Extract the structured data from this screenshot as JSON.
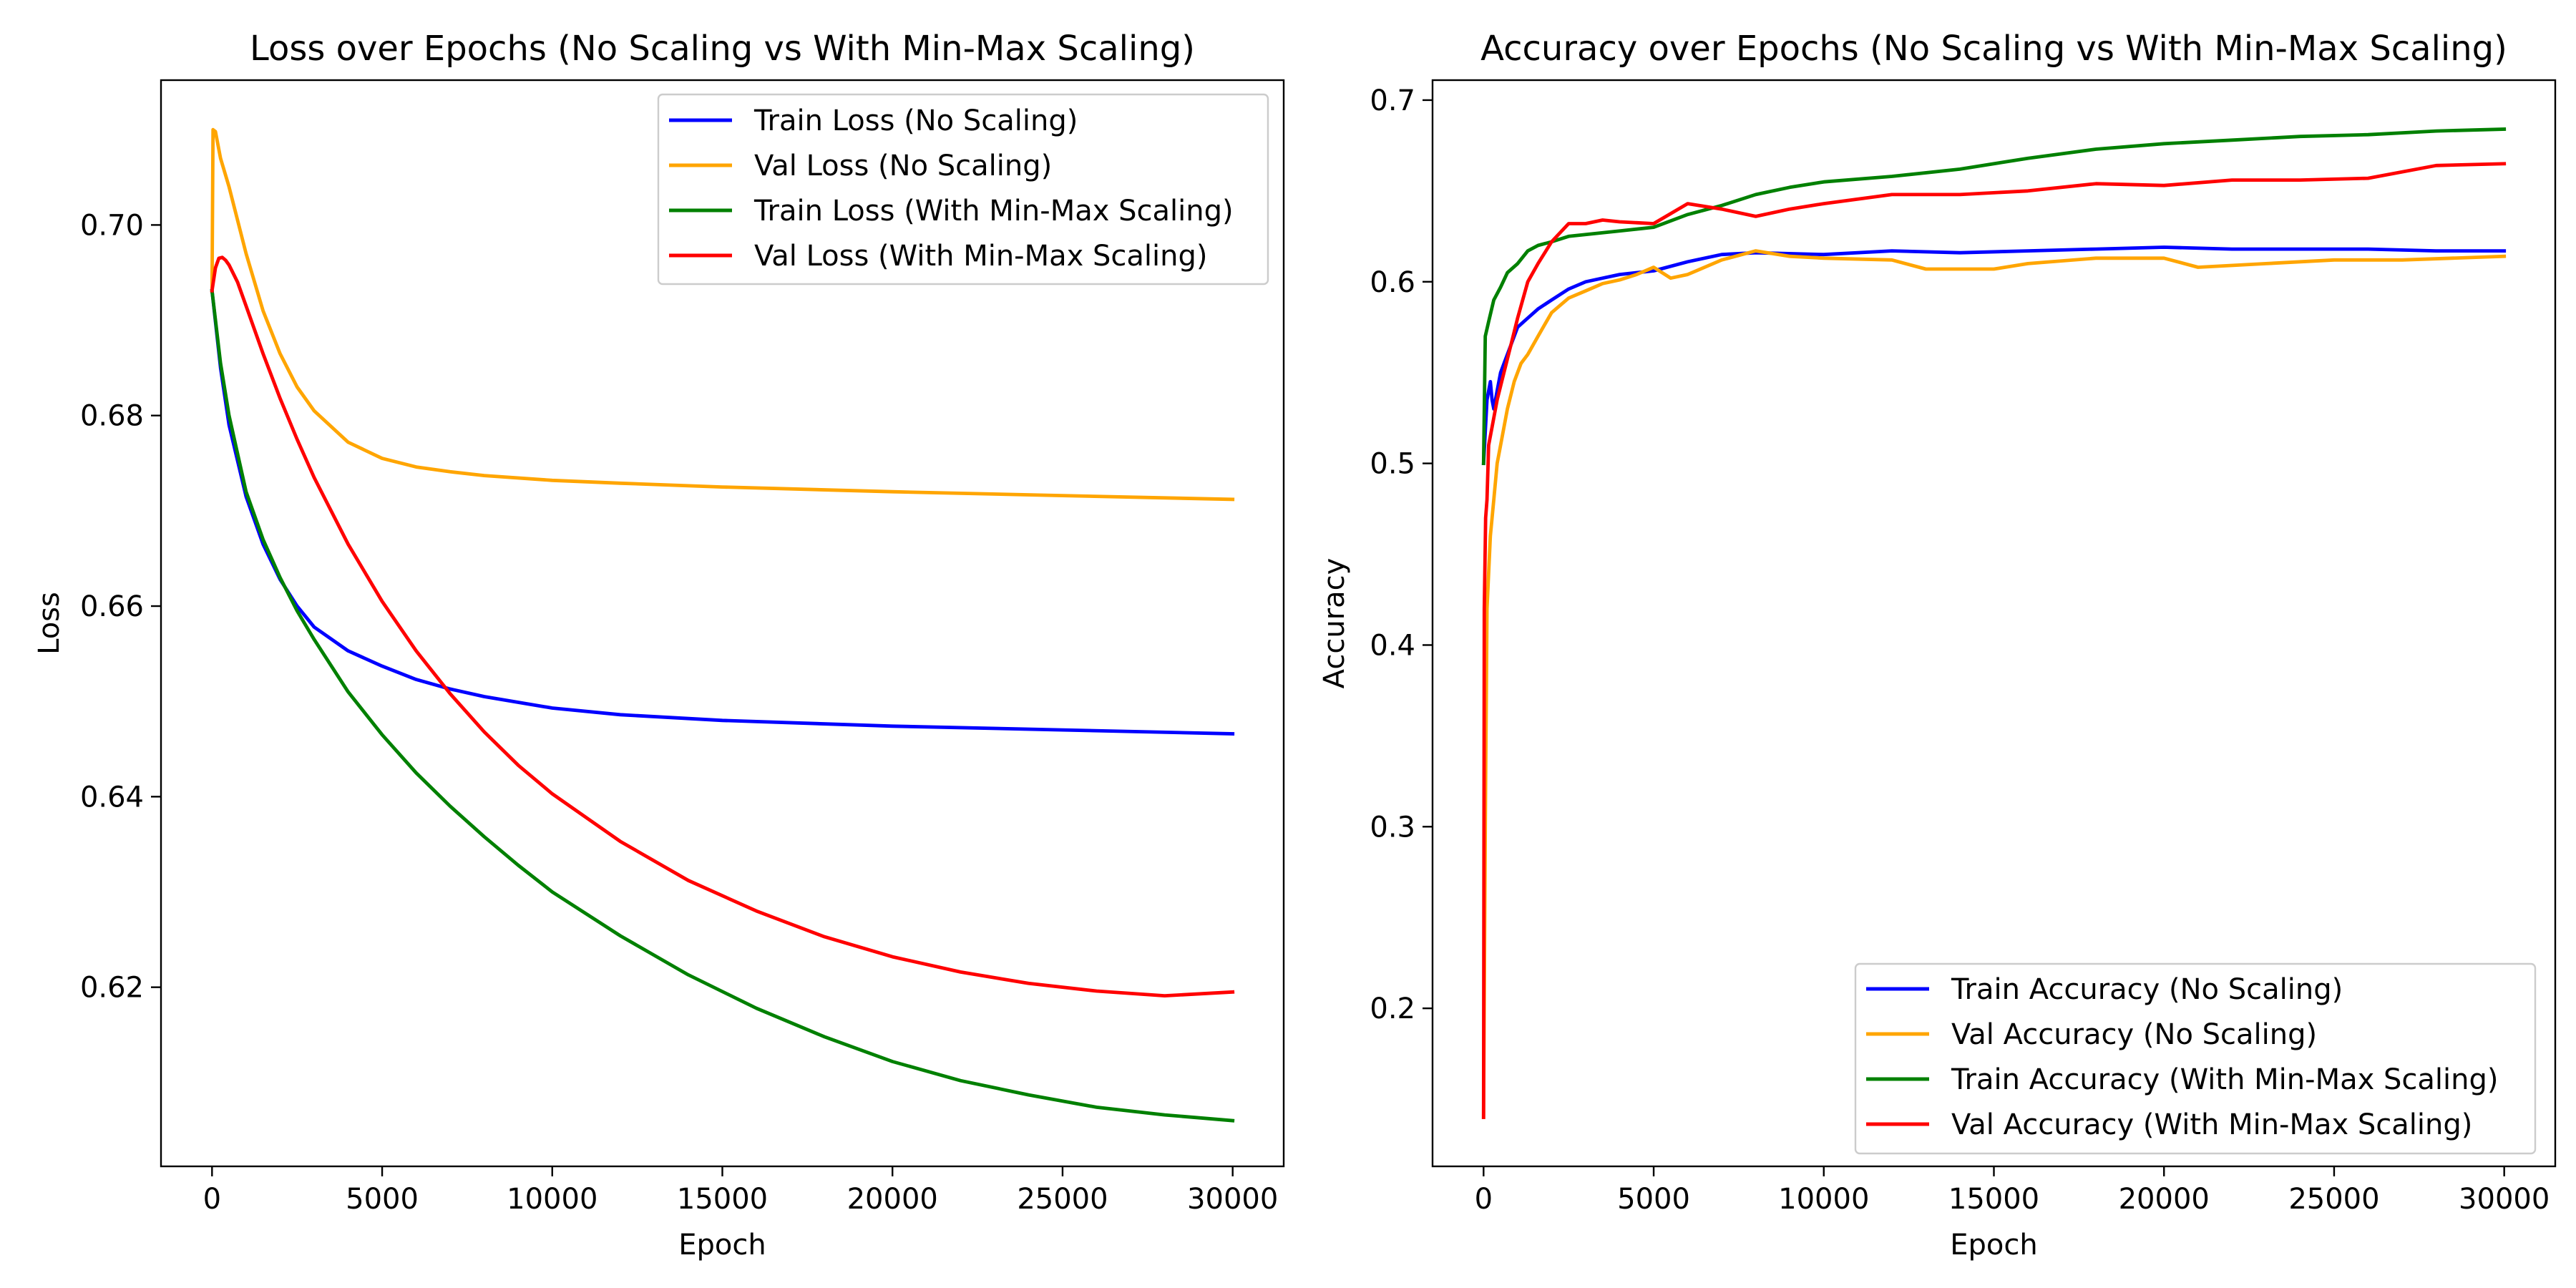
{
  "chart_data": [
    {
      "type": "line",
      "title": "Loss over Epochs (No Scaling vs With Min-Max Scaling)",
      "xlabel": "Epoch",
      "ylabel": "Loss",
      "xlim": [
        -1500,
        31500
      ],
      "ylim": [
        0.6012,
        0.7152
      ],
      "xticks": [
        0,
        5000,
        10000,
        15000,
        20000,
        25000,
        30000
      ],
      "yticks": [
        0.62,
        0.64,
        0.66,
        0.68,
        0.7
      ],
      "grid": false,
      "legend_position": "top-right",
      "series": [
        {
          "name": "Train Loss (No Scaling)",
          "color": "#0000ff",
          "x": [
            0,
            250,
            500,
            1000,
            1500,
            2000,
            2500,
            3000,
            4000,
            5000,
            6000,
            7000,
            8000,
            10000,
            12000,
            15000,
            20000,
            25000,
            30000
          ],
          "y": [
            0.6931,
            0.685,
            0.679,
            0.6715,
            0.6665,
            0.6628,
            0.66,
            0.6578,
            0.6553,
            0.6537,
            0.6523,
            0.6513,
            0.6505,
            0.6493,
            0.6486,
            0.648,
            0.6474,
            0.647,
            0.6466
          ]
        },
        {
          "name": "Val Loss (No Scaling)",
          "color": "#ffa500",
          "x": [
            0,
            30,
            100,
            250,
            500,
            1000,
            1500,
            2000,
            2500,
            3000,
            4000,
            5000,
            6000,
            7000,
            8000,
            10000,
            12000,
            15000,
            20000,
            25000,
            30000
          ],
          "y": [
            0.6931,
            0.71,
            0.7098,
            0.707,
            0.704,
            0.697,
            0.691,
            0.6865,
            0.683,
            0.6805,
            0.6772,
            0.6755,
            0.6746,
            0.6741,
            0.6737,
            0.6732,
            0.6729,
            0.6725,
            0.672,
            0.6716,
            0.6712
          ]
        },
        {
          "name": "Train Loss (With Min-Max Scaling)",
          "color": "#008000",
          "x": [
            0,
            250,
            500,
            1000,
            1500,
            2000,
            2500,
            3000,
            4000,
            5000,
            6000,
            7000,
            8000,
            9000,
            10000,
            12000,
            14000,
            16000,
            18000,
            20000,
            22000,
            24000,
            26000,
            28000,
            30000
          ],
          "y": [
            0.6931,
            0.6855,
            0.68,
            0.672,
            0.667,
            0.663,
            0.6595,
            0.6565,
            0.651,
            0.6465,
            0.6425,
            0.639,
            0.6358,
            0.6328,
            0.63,
            0.6254,
            0.6213,
            0.6178,
            0.6148,
            0.6122,
            0.6102,
            0.6087,
            0.6074,
            0.6066,
            0.606
          ]
        },
        {
          "name": "Val Loss (With Min-Max Scaling)",
          "color": "#ff0000",
          "x": [
            0,
            100,
            200,
            300,
            400,
            500,
            750,
            1000,
            1500,
            2000,
            2500,
            3000,
            4000,
            5000,
            6000,
            7000,
            8000,
            9000,
            10000,
            12000,
            14000,
            16000,
            18000,
            20000,
            22000,
            24000,
            26000,
            28000,
            30000
          ],
          "y": [
            0.6931,
            0.6955,
            0.6965,
            0.6966,
            0.6963,
            0.6958,
            0.694,
            0.6915,
            0.6865,
            0.6818,
            0.6775,
            0.6735,
            0.6665,
            0.6605,
            0.6553,
            0.6508,
            0.6468,
            0.6433,
            0.6403,
            0.6353,
            0.6312,
            0.628,
            0.6253,
            0.6232,
            0.6216,
            0.6204,
            0.6196,
            0.6191,
            0.6195
          ]
        }
      ]
    },
    {
      "type": "line",
      "title": "Accuracy over Epochs (No Scaling vs With Min-Max Scaling)",
      "xlabel": "Epoch",
      "ylabel": "Accuracy",
      "xlim": [
        -1500,
        31500
      ],
      "ylim": [
        0.113,
        0.711
      ],
      "xticks": [
        0,
        5000,
        10000,
        15000,
        20000,
        25000,
        30000
      ],
      "yticks": [
        0.2,
        0.3,
        0.4,
        0.5,
        0.6,
        0.7
      ],
      "grid": false,
      "legend_position": "bottom-right",
      "series": [
        {
          "name": "Train Accuracy (No Scaling)",
          "color": "#0000ff",
          "x": [
            0,
            100,
            200,
            250,
            300,
            400,
            500,
            700,
            1000,
            1300,
            1600,
            2000,
            2500,
            3000,
            3500,
            4000,
            5000,
            6000,
            7000,
            8000,
            10000,
            12000,
            14000,
            16000,
            18000,
            20000,
            22000,
            24000,
            26000,
            28000,
            30000
          ],
          "y": [
            0.5,
            0.535,
            0.545,
            0.535,
            0.53,
            0.54,
            0.55,
            0.56,
            0.575,
            0.58,
            0.585,
            0.59,
            0.596,
            0.6,
            0.602,
            0.604,
            0.606,
            0.611,
            0.615,
            0.616,
            0.615,
            0.617,
            0.616,
            0.617,
            0.618,
            0.619,
            0.618,
            0.618,
            0.618,
            0.617,
            0.617
          ]
        },
        {
          "name": "Val Accuracy (No Scaling)",
          "color": "#ffa500",
          "x": [
            0,
            50,
            100,
            200,
            300,
            400,
            500,
            700,
            900,
            1100,
            1300,
            1600,
            2000,
            2500,
            3000,
            3500,
            4000,
            4500,
            5000,
            5500,
            6000,
            7000,
            8000,
            9000,
            10000,
            12000,
            13000,
            15000,
            16000,
            18000,
            20000,
            21000,
            23000,
            25000,
            27000,
            30000
          ],
          "y": [
            0.14,
            0.3,
            0.42,
            0.46,
            0.48,
            0.5,
            0.51,
            0.53,
            0.545,
            0.555,
            0.56,
            0.57,
            0.583,
            0.591,
            0.595,
            0.599,
            0.601,
            0.604,
            0.608,
            0.602,
            0.604,
            0.612,
            0.617,
            0.614,
            0.613,
            0.612,
            0.607,
            0.607,
            0.61,
            0.613,
            0.613,
            0.608,
            0.61,
            0.612,
            0.612,
            0.614
          ]
        },
        {
          "name": "Train Accuracy (With Min-Max Scaling)",
          "color": "#008000",
          "x": [
            0,
            50,
            150,
            300,
            500,
            700,
            1000,
            1300,
            1600,
            2000,
            2500,
            3000,
            4000,
            5000,
            6000,
            7000,
            8000,
            9000,
            10000,
            12000,
            14000,
            16000,
            18000,
            20000,
            22000,
            24000,
            26000,
            28000,
            30000
          ],
          "y": [
            0.5,
            0.57,
            0.578,
            0.59,
            0.597,
            0.605,
            0.61,
            0.617,
            0.62,
            0.622,
            0.625,
            0.626,
            0.628,
            0.63,
            0.637,
            0.642,
            0.648,
            0.652,
            0.655,
            0.658,
            0.662,
            0.668,
            0.673,
            0.676,
            0.678,
            0.68,
            0.681,
            0.683,
            0.684
          ]
        },
        {
          "name": "Val Accuracy (With Min-Max Scaling)",
          "color": "#ff0000",
          "x": [
            0,
            20,
            60,
            100,
            150,
            250,
            400,
            600,
            800,
            1000,
            1300,
            1600,
            2000,
            2500,
            3000,
            3500,
            4000,
            5000,
            6000,
            7000,
            8000,
            9000,
            10000,
            12000,
            14000,
            16000,
            18000,
            20000,
            22000,
            24000,
            26000,
            28000,
            30000
          ],
          "y": [
            0.14,
            0.42,
            0.47,
            0.48,
            0.51,
            0.52,
            0.535,
            0.55,
            0.565,
            0.58,
            0.6,
            0.61,
            0.622,
            0.632,
            0.632,
            0.634,
            0.633,
            0.632,
            0.643,
            0.64,
            0.636,
            0.64,
            0.643,
            0.648,
            0.648,
            0.65,
            0.654,
            0.653,
            0.656,
            0.656,
            0.657,
            0.664,
            0.665
          ]
        }
      ]
    }
  ]
}
